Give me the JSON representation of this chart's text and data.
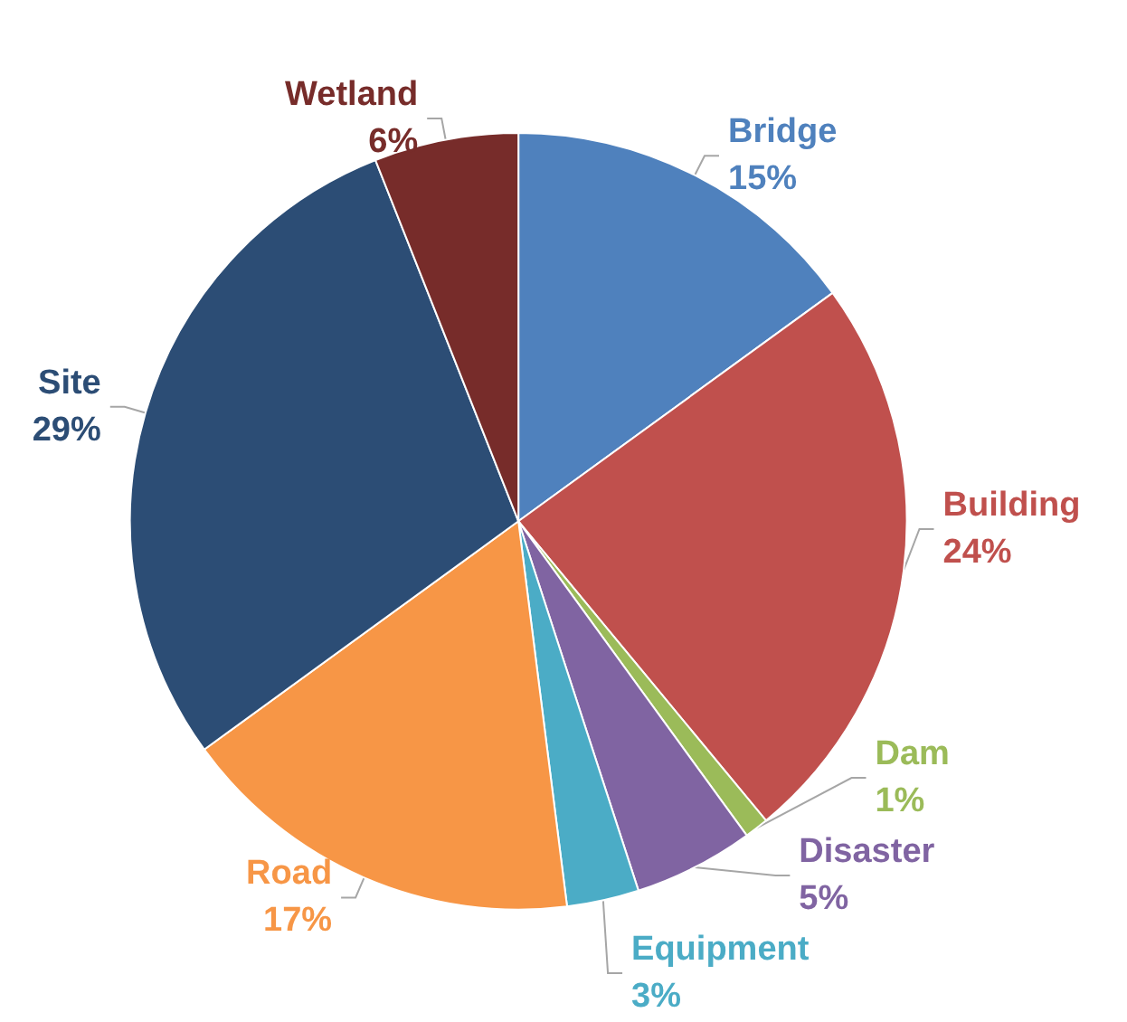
{
  "chart_data": {
    "type": "pie",
    "categories": [
      "Bridge",
      "Building",
      "Dam",
      "Disaster",
      "Equipment",
      "Road",
      "Site",
      "Wetland"
    ],
    "values": [
      15,
      24,
      1,
      5,
      3,
      17,
      29,
      6
    ],
    "value_labels": [
      "15%",
      "24%",
      "1%",
      "5%",
      "3%",
      "17%",
      "29%",
      "6%"
    ],
    "colors": [
      "#4f81bd",
      "#c0504d",
      "#9bbb59",
      "#8064a2",
      "#4bacc6",
      "#f79646",
      "#2c4d75",
      "#772c2a"
    ],
    "legend": false
  }
}
